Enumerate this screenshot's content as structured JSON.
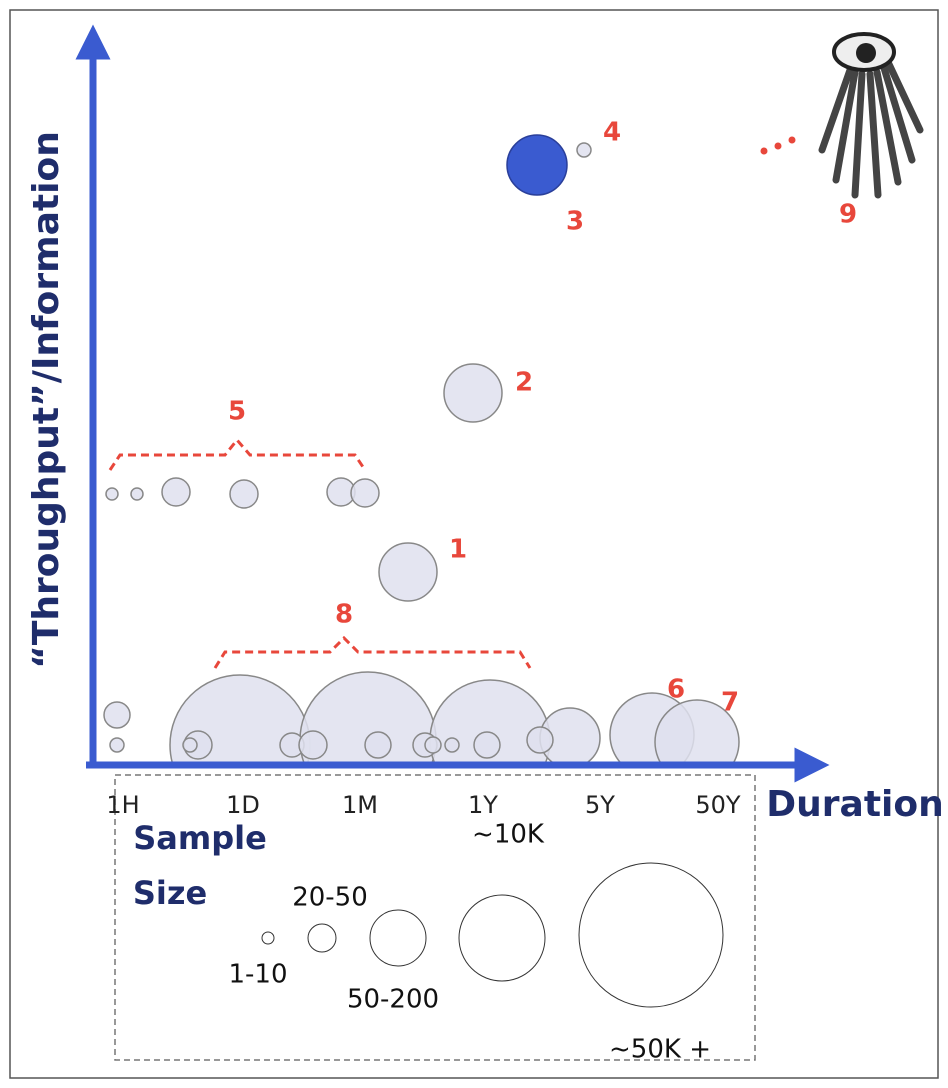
{
  "y_axis_label": "“Throughput”/Information",
  "x_axis_label": "Duration",
  "x_ticks": [
    "1H",
    "1D",
    "1M",
    "1Y",
    "5Y",
    "50Y"
  ],
  "point_labels": [
    "1",
    "2",
    "3",
    "4",
    "5",
    "6",
    "7",
    "8",
    "9"
  ],
  "legend": {
    "title_lines": [
      "Sample",
      "Size"
    ],
    "sizes": [
      "1-10",
      "20-50",
      "50-200",
      "~10K",
      "~50K +"
    ]
  }
}
